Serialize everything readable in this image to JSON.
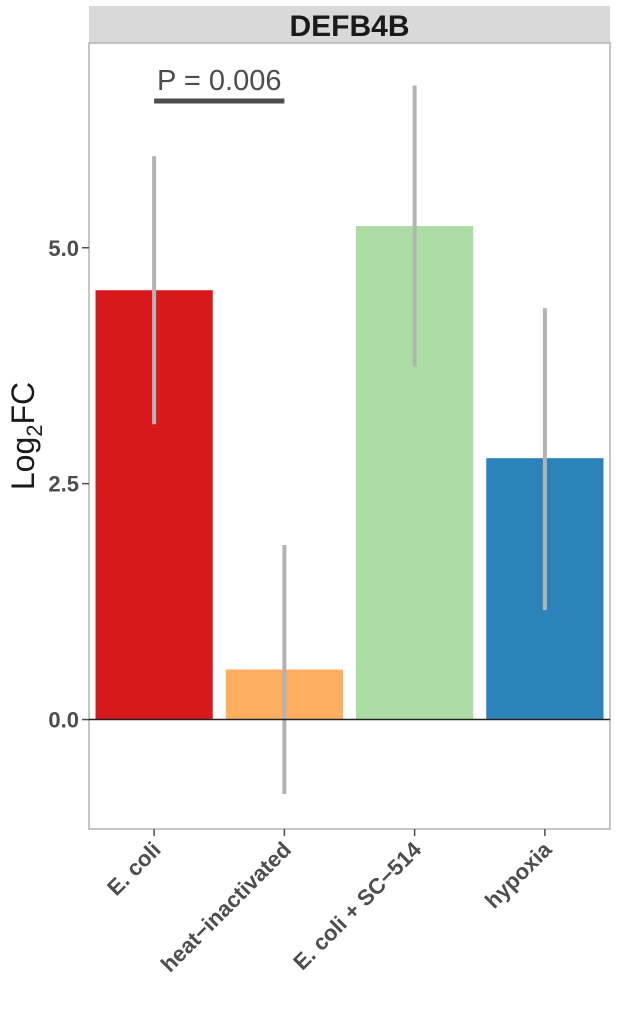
{
  "chart_data": {
    "type": "bar",
    "title": "DEFB4B",
    "ylabel": {
      "base": "Log",
      "sub": "2",
      "rest": "FC"
    },
    "xlabel": "",
    "categories": [
      "E. coli",
      "heat−inactivated",
      "E. coli + SC−514",
      "hypoxia"
    ],
    "values": [
      4.55,
      0.53,
      5.23,
      2.77
    ],
    "error_low": [
      3.13,
      -0.79,
      3.74,
      1.16
    ],
    "error_high": [
      5.97,
      1.85,
      6.72,
      4.36
    ],
    "colors": [
      "#d7191c",
      "#fdae61",
      "#abdda4",
      "#2b83ba"
    ],
    "ylim": [
      -1.16,
      7.17
    ],
    "yticks": [
      {
        "value": 0.0,
        "label": "0.0"
      },
      {
        "value": 2.5,
        "label": "2.5"
      },
      {
        "value": 5.0,
        "label": "5.0"
      }
    ],
    "annotations": [
      {
        "text": "P = 0.006",
        "from": 0,
        "to": 1
      }
    ],
    "grid": false,
    "legend": "none"
  }
}
